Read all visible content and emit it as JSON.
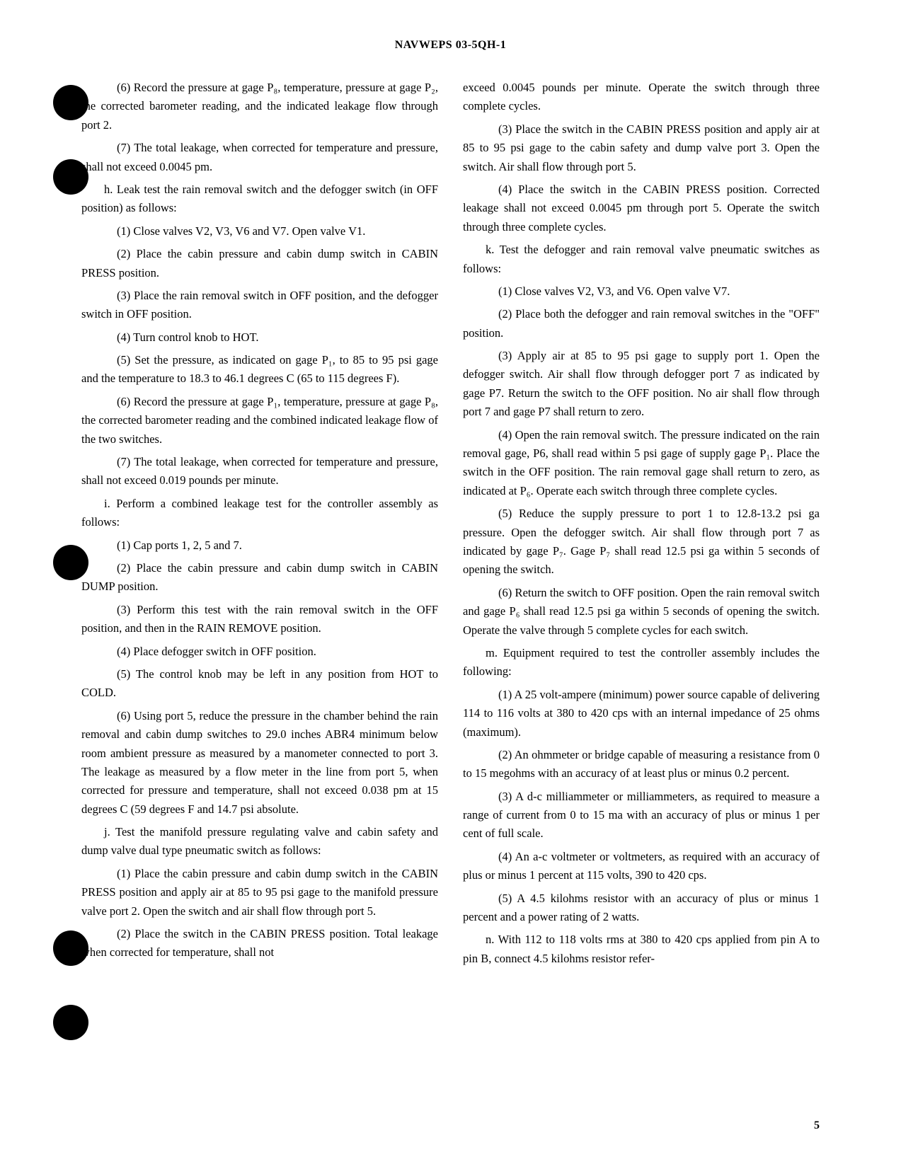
{
  "header": "NAVWEPS 03-5QH-1",
  "pageNumber": "5",
  "leftColumn": {
    "p1": "(6) Record the pressure at gage P₈, temperature, pressure at gage P₂, the corrected barometer reading, and the indicated leakage flow through port 2.",
    "p2": "(7) The total leakage, when corrected for temperature and pressure, shall not exceed 0.0045 pm.",
    "p3": "h. Leak test the rain removal switch and the defogger switch (in OFF position) as follows:",
    "p4": "(1) Close valves V2, V3, V6 and V7. Open valve V1.",
    "p5": "(2) Place the cabin pressure and cabin dump switch in CABIN PRESS position.",
    "p6": "(3) Place the rain removal switch in OFF position, and the defogger switch in OFF position.",
    "p7": "(4) Turn control knob to HOT.",
    "p8": "(5) Set the pressure, as indicated on gage P₁, to 85 to 95 psi gage and the temperature to 18.3 to 46.1 degrees C (65 to 115 degrees F).",
    "p9": "(6) Record the pressure at gage P₁, temperature, pressure at gage P₈, the corrected barometer reading and the combined indicated leakage flow of the two switches.",
    "p10": "(7) The total leakage, when corrected for temperature and pressure, shall not exceed 0.019 pounds per minute.",
    "p11": "i. Perform a combined leakage test for the controller assembly as follows:",
    "p12": "(1) Cap ports 1, 2, 5 and 7.",
    "p13": "(2) Place the cabin pressure and cabin dump switch in CABIN DUMP position.",
    "p14": "(3) Perform this test with the rain removal switch in the OFF position, and then in the RAIN REMOVE position.",
    "p15": "(4) Place defogger switch in OFF position.",
    "p16": "(5) The control knob may be left in any position from HOT to COLD.",
    "p17": "(6) Using port 5, reduce the pressure in the chamber behind the rain removal and cabin dump switches to 29.0 inches ABR4 minimum below room ambient pressure as measured by a manometer connected to port 3. The leakage as measured by a flow meter in the line from port 5, when corrected for pressure and temperature, shall not exceed 0.038 pm at 15 degrees C (59 degrees F and 14.7 psi absolute.",
    "p18": "j. Test the manifold pressure regulating valve and cabin safety and dump valve dual type pneumatic switch as follows:",
    "p19": "(1) Place the cabin pressure and cabin dump switch in the CABIN PRESS position and apply air at 85 to 95 psi gage to the manifold pressure valve port 2. Open the switch and air shall flow through port 5.",
    "p20": "(2) Place the switch in the CABIN PRESS position. Total leakage when corrected for temperature, shall not"
  },
  "rightColumn": {
    "p1": "exceed 0.0045 pounds per minute. Operate the switch through three complete cycles.",
    "p2": "(3) Place the switch in the CABIN PRESS position and apply air at 85 to 95 psi gage to the cabin safety and dump valve port 3. Open the switch. Air shall flow through port 5.",
    "p3": "(4) Place the switch in the CABIN PRESS position. Corrected leakage shall not exceed 0.0045 pm through port 5. Operate the switch through three complete cycles.",
    "p4": "k. Test the defogger and rain removal valve pneumatic switches as follows:",
    "p5": "(1) Close valves V2, V3, and V6. Open valve V7.",
    "p6": "(2) Place both the defogger and rain removal switches in the \"OFF\" position.",
    "p7": "(3) Apply air at 85 to 95 psi gage to supply port 1. Open the defogger switch. Air shall flow through defogger port 7 as indicated by gage P7. Return the switch to the OFF position. No air shall flow through port 7 and gage P7 shall return to zero.",
    "p8": "(4) Open the rain removal switch. The pressure indicated on the rain removal gage, P6, shall read within 5 psi gage of supply gage P₁. Place the switch in the OFF position. The rain removal gage shall return to zero, as indicated at P₆. Operate each switch through three complete cycles.",
    "p9": "(5) Reduce the supply pressure to port 1 to 12.8-13.2 psi ga pressure. Open the defogger switch. Air shall flow through port 7 as indicated by gage P₇. Gage P₇ shall read 12.5 psi ga within 5 seconds of opening the switch.",
    "p10": "(6) Return the switch to OFF position. Open the rain removal switch and gage P₆ shall read 12.5 psi ga within 5 seconds of opening the switch. Operate the valve through 5 complete cycles for each switch.",
    "p11": "m. Equipment required to test the controller assembly includes the following:",
    "p12": "(1) A 25 volt-ampere (minimum) power source capable of delivering 114 to 116 volts at 380 to 420 cps with an internal impedance of 25 ohms (maximum).",
    "p13": "(2) An ohmmeter or bridge capable of measuring a resistance from 0 to 15 megohms with an accuracy of at least plus or minus 0.2 percent.",
    "p14": "(3) A d-c milliammeter or milliammeters, as required to measure a range of current from 0 to 15 ma with an accuracy of plus or minus 1 per cent of full scale.",
    "p15": "(4) An a-c voltmeter or voltmeters, as required with an accuracy of plus or minus 1 percent at 115 volts, 390 to 420 cps.",
    "p16": "(5) A 4.5 kilohms resistor with an accuracy of plus or minus 1 percent and a power rating of 2 watts.",
    "p17": "n. With 112 to 118 volts rms at 380 to 420 cps applied from pin A to pin B, connect 4.5 kilohms resistor refer-"
  },
  "styling": {
    "backgroundColor": "#ffffff",
    "textColor": "#000000",
    "headerFontSize": 16,
    "bodyFontSize": 16.5,
    "lineHeight": 1.6,
    "firstLineIndent": 32,
    "subItemIndent": 50,
    "columnGap": 35,
    "punchHoleColor": "#000000",
    "punchHoleDiameter": 50,
    "fontFamily": "Georgia, Times New Roman, serif"
  }
}
